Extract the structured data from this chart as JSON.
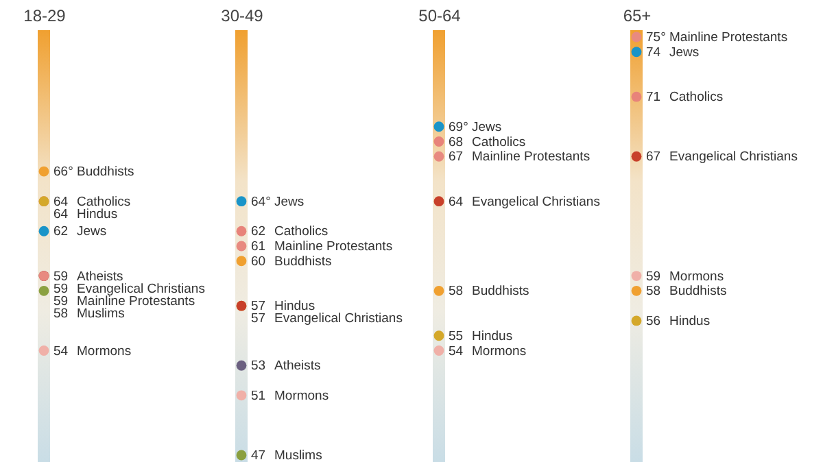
{
  "chart_data": {
    "type": "scatter",
    "categories": [
      "18-29",
      "30-49",
      "50-64",
      "65+"
    ],
    "tick_labels": "x",
    "marker": "circle",
    "series": [
      {
        "name": "Buddhists",
        "color": "#f0a030",
        "values": [
          66,
          60,
          58,
          58
        ],
        "value_labels": [
          "66°",
          "60",
          "58",
          "58"
        ]
      },
      {
        "name": "Catholics",
        "color": "#e8837a",
        "values": [
          64,
          62,
          68,
          71
        ],
        "value_labels": [
          "64",
          "62",
          "68",
          "71"
        ]
      },
      {
        "name": "Hindus",
        "color": "#d4a82a",
        "values": [
          64,
          57,
          55,
          56
        ],
        "value_labels": [
          "64",
          "57",
          "55",
          "56"
        ]
      },
      {
        "name": "Jews",
        "color": "#1a94c8",
        "values": [
          62,
          64,
          69,
          74
        ],
        "value_labels": [
          "62",
          "64°",
          "69°",
          "74"
        ]
      },
      {
        "name": "Atheists",
        "color": "#6b6080",
        "values": [
          59,
          53,
          null,
          null
        ],
        "value_labels": [
          "59",
          "53",
          null,
          null
        ]
      },
      {
        "name": "Evangelical Christians",
        "color": "#c8402a",
        "values": [
          59,
          57,
          64,
          67
        ],
        "value_labels": [
          "59",
          "57",
          "64",
          "67"
        ]
      },
      {
        "name": "Mainline Protestants",
        "color": "#e88a80",
        "values": [
          59,
          61,
          67,
          75
        ],
        "value_labels": [
          "59",
          "61",
          "67",
          "75°"
        ]
      },
      {
        "name": "Muslims",
        "color": "#8aa040",
        "values": [
          58,
          47,
          null,
          null
        ],
        "value_labels": [
          "58",
          "47",
          null,
          null
        ]
      },
      {
        "name": "Mormons",
        "color": "#f0b0a8",
        "values": [
          54,
          51,
          54,
          59
        ],
        "value_labels": [
          "54",
          "51",
          "54",
          "59"
        ]
      }
    ]
  }
}
